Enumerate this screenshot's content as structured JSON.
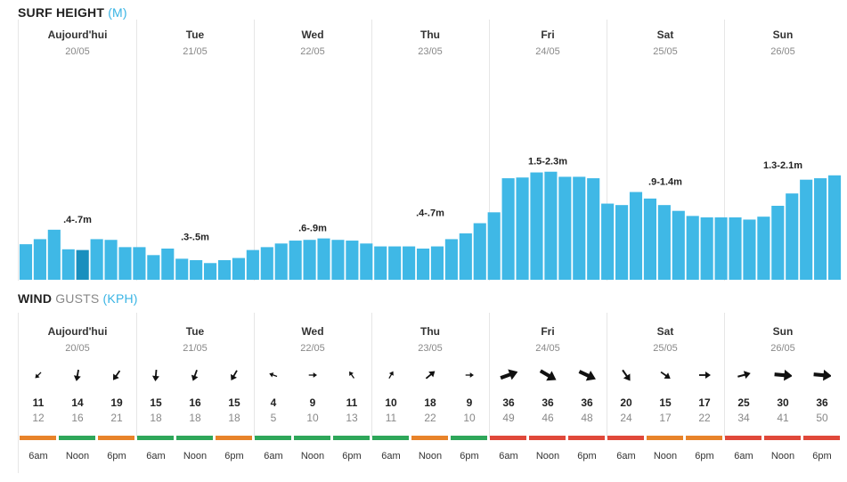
{
  "surf": {
    "title_main": "SURF HEIGHT",
    "title_unit": "(M)",
    "days": [
      {
        "name": "Aujourd'hui",
        "date": "20/05",
        "range": ".4-.7m"
      },
      {
        "name": "Tue",
        "date": "21/05",
        "range": ".3-.5m"
      },
      {
        "name": "Wed",
        "date": "22/05",
        "range": ".6-.9m"
      },
      {
        "name": "Thu",
        "date": "23/05",
        "range": ".4-.7m"
      },
      {
        "name": "Fri",
        "date": "24/05",
        "range": "1.5-2.3m"
      },
      {
        "name": "Sat",
        "date": "25/05",
        "range": ".9-1.4m"
      },
      {
        "name": "Sun",
        "date": "26/05",
        "range": "1.3-2.1m"
      }
    ]
  },
  "chart_data": {
    "type": "bar",
    "ylabel": "",
    "ylim": [
      0,
      3.6
    ],
    "values": [
      0.49,
      0.56,
      0.69,
      0.42,
      0.41,
      0.56,
      0.55,
      0.45,
      0.45,
      0.34,
      0.43,
      0.29,
      0.27,
      0.23,
      0.27,
      0.3,
      0.41,
      0.45,
      0.5,
      0.54,
      0.55,
      0.57,
      0.55,
      0.54,
      0.5,
      0.46,
      0.46,
      0.46,
      0.43,
      0.46,
      0.56,
      0.64,
      0.78,
      0.93,
      1.4,
      1.41,
      1.48,
      1.49,
      1.42,
      1.42,
      1.4,
      1.05,
      1.03,
      1.21,
      1.12,
      1.03,
      0.95,
      0.88,
      0.86,
      0.86,
      0.86,
      0.83,
      0.87,
      1.02,
      1.19,
      1.38,
      1.4,
      1.44
    ],
    "highlight_index": 4,
    "colors": {
      "bar": "#3fb8e6",
      "bar_highlight": "#1a8fbe"
    }
  },
  "wind": {
    "title_main": "WIND",
    "title_sub": "GUSTS",
    "title_unit": "(KPH)",
    "days": [
      {
        "name": "Aujourd'hui",
        "date": "20/05"
      },
      {
        "name": "Tue",
        "date": "21/05"
      },
      {
        "name": "Wed",
        "date": "22/05"
      },
      {
        "name": "Thu",
        "date": "23/05"
      },
      {
        "name": "Fri",
        "date": "24/05"
      },
      {
        "name": "Sat",
        "date": "25/05"
      },
      {
        "name": "Sun",
        "date": "26/05"
      }
    ],
    "slots": [
      {
        "speed": "11",
        "gust": "12",
        "dir": 135,
        "rating": "orange"
      },
      {
        "speed": "14",
        "gust": "16",
        "dir": 100,
        "rating": "green"
      },
      {
        "speed": "19",
        "gust": "21",
        "dir": 125,
        "rating": "orange"
      },
      {
        "speed": "15",
        "gust": "18",
        "dir": 95,
        "rating": "green"
      },
      {
        "speed": "16",
        "gust": "18",
        "dir": 110,
        "rating": "green"
      },
      {
        "speed": "15",
        "gust": "18",
        "dir": 120,
        "rating": "orange"
      },
      {
        "speed": "4",
        "gust": "5",
        "dir": 200,
        "rating": "green"
      },
      {
        "speed": "9",
        "gust": "10",
        "dir": 0,
        "rating": "green"
      },
      {
        "speed": "11",
        "gust": "13",
        "dir": 235,
        "rating": "green"
      },
      {
        "speed": "10",
        "gust": "11",
        "dir": 300,
        "rating": "green"
      },
      {
        "speed": "18",
        "gust": "22",
        "dir": 320,
        "rating": "orange"
      },
      {
        "speed": "9",
        "gust": "10",
        "dir": 0,
        "rating": "green"
      },
      {
        "speed": "36",
        "gust": "49",
        "dir": 340,
        "rating": "red"
      },
      {
        "speed": "36",
        "gust": "46",
        "dir": 30,
        "rating": "red"
      },
      {
        "speed": "36",
        "gust": "48",
        "dir": 25,
        "rating": "red"
      },
      {
        "speed": "20",
        "gust": "24",
        "dir": 55,
        "rating": "red"
      },
      {
        "speed": "15",
        "gust": "17",
        "dir": 35,
        "rating": "orange"
      },
      {
        "speed": "17",
        "gust": "22",
        "dir": 0,
        "rating": "orange"
      },
      {
        "speed": "25",
        "gust": "34",
        "dir": 345,
        "rating": "red"
      },
      {
        "speed": "30",
        "gust": "41",
        "dir": 5,
        "rating": "red"
      },
      {
        "speed": "36",
        "gust": "50",
        "dir": 5,
        "rating": "red"
      }
    ],
    "times": [
      "6am",
      "Noon",
      "6pm"
    ],
    "colors": {
      "green": "#2ea75a",
      "orange": "#e8832a",
      "red": "#e0483a"
    }
  }
}
